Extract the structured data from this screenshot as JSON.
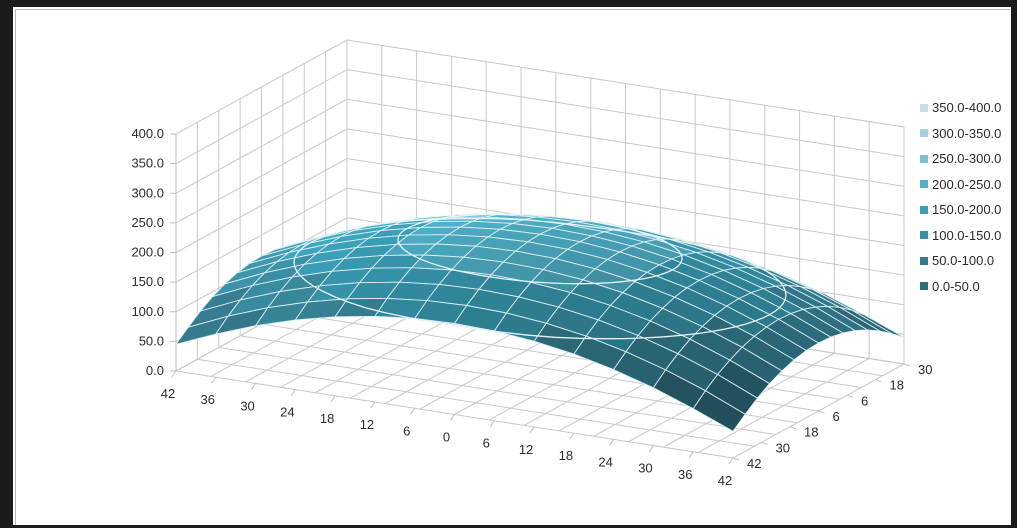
{
  "chart_data": {
    "type": "surface",
    "title": "",
    "z_axis": {
      "min": 0,
      "max": 400,
      "step": 50,
      "tick_labels": [
        "0.0",
        "50.0",
        "100.0",
        "150.0",
        "200.0",
        "250.0",
        "300.0",
        "350.0",
        "400.0"
      ]
    },
    "x_axis": {
      "tick_labels": [
        "42",
        "36",
        "30",
        "24",
        "18",
        "12",
        "6",
        "0",
        "6",
        "12",
        "18",
        "24",
        "30",
        "36",
        "42"
      ],
      "values": [
        -42,
        -36,
        -30,
        -24,
        -18,
        -12,
        -6,
        0,
        6,
        12,
        18,
        24,
        30,
        36,
        42
      ]
    },
    "y_axis": {
      "tick_labels": [
        "30",
        "18",
        "6",
        "6",
        "18",
        "30",
        "42"
      ],
      "values": [
        30,
        18,
        6,
        -6,
        -18,
        -30,
        -42
      ]
    },
    "surface": {
      "peak_value": 225,
      "peak_x": 0,
      "peak_y": 0,
      "edge_value_min": 45,
      "note_shape": "dome"
    },
    "legend": {
      "placement": "right",
      "entries": [
        {
          "label": "350.0-400.0",
          "color": "#c4dfe9"
        },
        {
          "label": "300.0-350.0",
          "color": "#a4cfde"
        },
        {
          "label": "250.0-300.0",
          "color": "#7fbfd3"
        },
        {
          "label": "200.0-250.0",
          "color": "#4fb1c9"
        },
        {
          "label": "150.0-200.0",
          "color": "#3a9fb7"
        },
        {
          "label": "100.0-150.0",
          "color": "#3b8ea3"
        },
        {
          "label": "50.0-100.0",
          "color": "#367c90"
        },
        {
          "label": "0.0-50.0",
          "color": "#2f6c7f"
        }
      ]
    },
    "grid": true
  }
}
